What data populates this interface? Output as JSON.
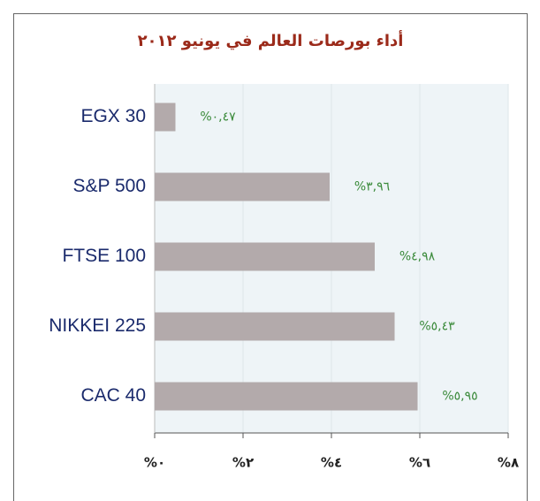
{
  "chart_data": {
    "type": "bar",
    "orientation": "horizontal",
    "title": "أداء بورصات العالم في يونيو ٢٠١٢",
    "categories": [
      "EGX 30",
      "S&P 500",
      "FTSE 100",
      "NIKKEI 225",
      "CAC 40"
    ],
    "values": [
      0.47,
      3.96,
      4.98,
      5.43,
      5.95
    ],
    "value_labels": [
      "%٠,٤٧",
      "%٣,٩٦",
      "%٤,٩٨",
      "%٥,٤٣",
      "%٥,٩٥"
    ],
    "color": "#b3aaab",
    "xlim": [
      0,
      8
    ],
    "xticks": [
      {
        "value": 0,
        "label": "%٠"
      },
      {
        "value": 2,
        "label": "%٢"
      },
      {
        "value": 4,
        "label": "%٤"
      },
      {
        "value": 6,
        "label": "%٦"
      },
      {
        "value": 8,
        "label": "%٨"
      }
    ],
    "grid": true
  }
}
